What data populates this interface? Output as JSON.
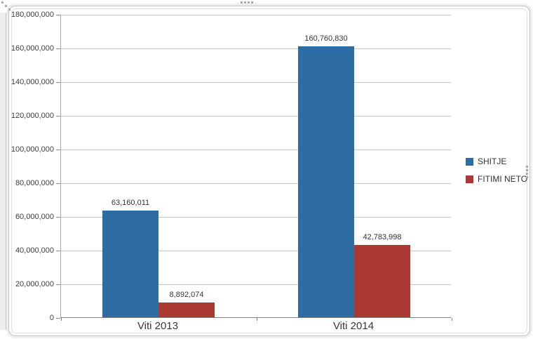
{
  "chart_data": {
    "type": "bar",
    "title": "",
    "xlabel": "",
    "ylabel": "",
    "categories": [
      "Viti 2013",
      "Viti 2014"
    ],
    "series": [
      {
        "name": "SHITJE",
        "color": "#2E6DA4",
        "values": [
          63160011,
          160760830
        ],
        "data_labels": [
          "63,160,011",
          "160,760,830"
        ]
      },
      {
        "name": "FITIMI NETO",
        "color": "#A93931",
        "values": [
          8892074,
          42783998
        ],
        "data_labels": [
          "8,892,074",
          "42,783,998"
        ]
      }
    ],
    "ylim": [
      0,
      180000000
    ],
    "ytick_step": 20000000,
    "ytick_labels": [
      "180,000,000",
      "160,000,000",
      "140,000,000",
      "120,000,000",
      "100,000,000",
      "80,000,000",
      "60,000,000",
      "40,000,000",
      "20,000,000",
      "0"
    ],
    "grid": true,
    "legend_position": "right"
  }
}
